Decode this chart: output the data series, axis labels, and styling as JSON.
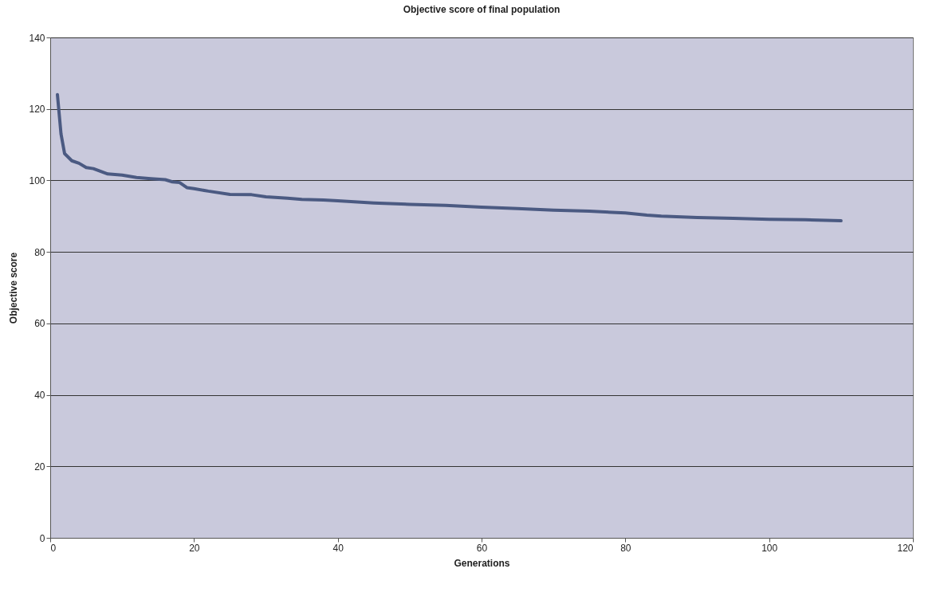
{
  "chart_data": {
    "type": "line",
    "title": "Objective score of final population",
    "xlabel": "Generations",
    "ylabel": "Objective score",
    "x": [
      1,
      1.5,
      2,
      3,
      4,
      5,
      6,
      8,
      10,
      12,
      14,
      16,
      17,
      18,
      19,
      20,
      22,
      25,
      28,
      30,
      33,
      35,
      38,
      40,
      45,
      50,
      55,
      60,
      65,
      70,
      75,
      80,
      83,
      85,
      90,
      95,
      100,
      105,
      110
    ],
    "series": [
      {
        "color": "#4b5a82",
        "values": [
          124,
          113,
          107.5,
          105.5,
          104.8,
          103.6,
          103.3,
          101.8,
          101.5,
          100.8,
          100.5,
          100.2,
          99.6,
          99.4,
          98.0,
          97.7,
          97.0,
          96.1,
          96.0,
          95.4,
          95.0,
          94.7,
          94.5,
          94.3,
          93.7,
          93.3,
          93.0,
          92.5,
          92.1,
          91.7,
          91.4,
          90.9,
          90.3,
          90.0,
          89.6,
          89.4,
          89.1,
          89.0,
          88.7
        ]
      }
    ],
    "xlim": [
      0,
      120
    ],
    "xticks": [
      0,
      20,
      40,
      60,
      80,
      100,
      120
    ],
    "ylim": [
      0,
      140
    ],
    "yticks": [
      0,
      20,
      40,
      60,
      80,
      100,
      120,
      140
    ],
    "grid": "y",
    "marker": "none",
    "line_style": "solid"
  }
}
